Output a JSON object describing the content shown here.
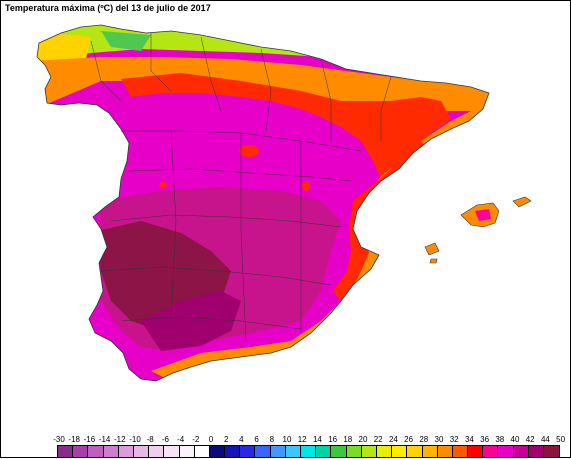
{
  "title": "Temperatura máxima (ºC) del 13 de julio de 2017",
  "legend": {
    "labels": [
      "-30",
      "-18",
      "-16",
      "-14",
      "-12",
      "-10",
      "-8",
      "-6",
      "-4",
      "-2",
      "0",
      "2",
      "4",
      "6",
      "8",
      "10",
      "12",
      "14",
      "16",
      "18",
      "20",
      "22",
      "24",
      "26",
      "28",
      "30",
      "32",
      "34",
      "36",
      "38",
      "40",
      "42",
      "44",
      "50"
    ],
    "colors": [
      "#8a2c8a",
      "#a640a6",
      "#bf5fbf",
      "#cf7dcf",
      "#dc9bdc",
      "#e6b8e6",
      "#eed0ee",
      "#f5e4f5",
      "#fbf2fb",
      "#ffffff",
      "#0a0a78",
      "#1414b4",
      "#2828e6",
      "#3c64ff",
      "#4696ff",
      "#3cc8ff",
      "#00e6e6",
      "#00d2a0",
      "#3cc83c",
      "#78dc28",
      "#b4e614",
      "#e6f000",
      "#ffeb00",
      "#ffd200",
      "#ffb400",
      "#ff8c00",
      "#ff5a00",
      "#ff0000",
      "#ff0096",
      "#e600c8",
      "#c80096",
      "#a0006e",
      "#8c143c"
    ]
  },
  "map": {
    "region": "Península Ibérica e Islas Baleares",
    "colors": {
      "north_coast": "#50c850",
      "cantabria": "#b4e614",
      "north_warm": "#ffb400",
      "orange": "#ff8c00",
      "red": "#ff2a00",
      "magenta": "#e600c8",
      "purple": "#c8148c",
      "maroon": "#8c1446",
      "borders": "#333333"
    }
  }
}
